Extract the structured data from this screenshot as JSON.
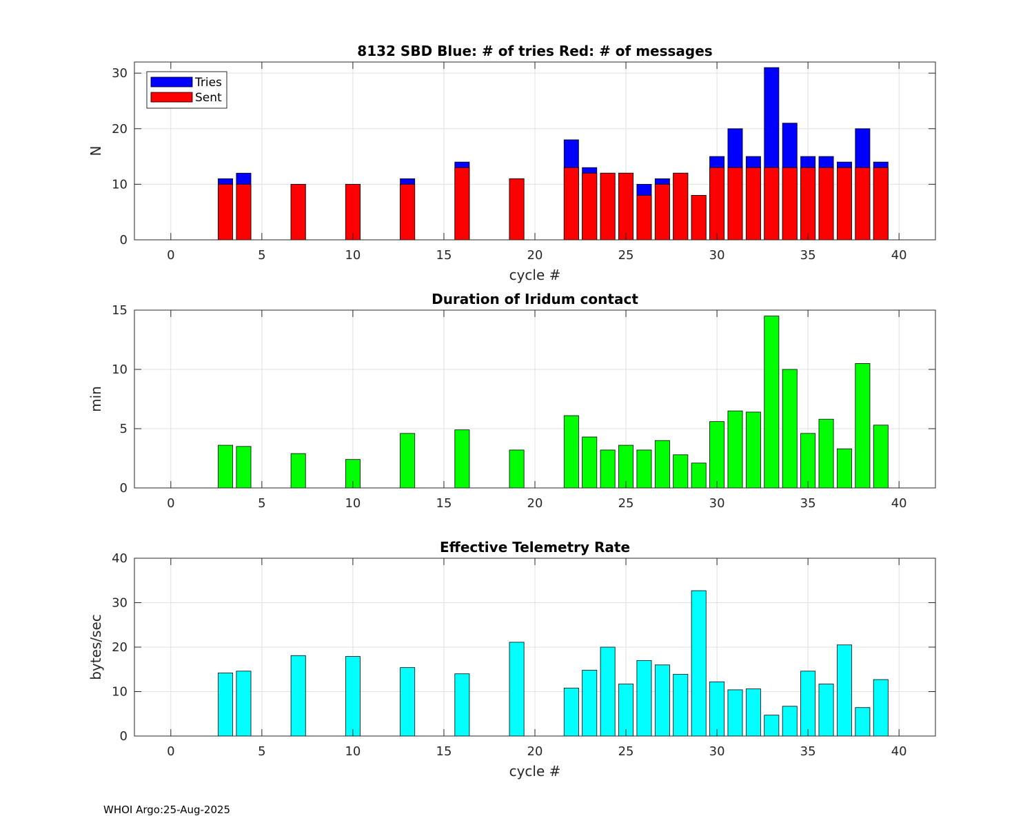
{
  "footer": "WHOI Argo:25-Aug-2025",
  "colors": {
    "tries": "#0000ff",
    "sent": "#ff0000",
    "duration": "#00ff00",
    "rate": "#00ffff"
  },
  "chart_data": [
    {
      "type": "bar",
      "title": "8132 SBD  Blue: # of tries   Red: # of messages",
      "xlabel": "cycle #",
      "ylabel": "N",
      "xlim": [
        -2,
        42
      ],
      "ylim": [
        0,
        32
      ],
      "xticks": [
        0,
        5,
        10,
        15,
        20,
        25,
        30,
        35,
        40
      ],
      "yticks": [
        0,
        10,
        20,
        30
      ],
      "grid": true,
      "legend_position": "top-left",
      "legend": [
        "Tries",
        "Sent"
      ],
      "x": [
        3,
        4,
        7,
        10,
        13,
        16,
        19,
        22,
        23,
        24,
        25,
        26,
        27,
        28,
        29,
        30,
        31,
        32,
        33,
        34,
        35,
        36,
        37,
        38,
        39
      ],
      "series": [
        {
          "name": "Tries",
          "values": [
            11,
            12,
            10,
            10,
            11,
            14,
            11,
            18,
            13,
            12,
            12,
            10,
            11,
            12,
            8,
            15,
            20,
            15,
            31,
            21,
            15,
            15,
            14,
            20,
            14
          ]
        },
        {
          "name": "Sent",
          "values": [
            10,
            10,
            10,
            10,
            10,
            13,
            11,
            13,
            12,
            12,
            12,
            8,
            10,
            12,
            8,
            13,
            13,
            13,
            13,
            13,
            13,
            13,
            13,
            13,
            13
          ]
        }
      ]
    },
    {
      "type": "bar",
      "title": "Duration of Iridum contact",
      "xlabel": "",
      "ylabel": "min",
      "xlim": [
        -2,
        42
      ],
      "ylim": [
        0,
        15
      ],
      "xticks": [
        0,
        5,
        10,
        15,
        20,
        25,
        30,
        35,
        40
      ],
      "yticks": [
        0,
        5,
        10,
        15
      ],
      "grid": true,
      "x": [
        3,
        4,
        7,
        10,
        13,
        16,
        19,
        22,
        23,
        24,
        25,
        26,
        27,
        28,
        29,
        30,
        31,
        32,
        33,
        34,
        35,
        36,
        37,
        38,
        39
      ],
      "series": [
        {
          "name": "Duration",
          "values": [
            3.6,
            3.5,
            2.9,
            2.4,
            4.6,
            4.9,
            3.2,
            6.1,
            4.3,
            3.2,
            3.6,
            3.2,
            4.0,
            2.8,
            2.1,
            5.6,
            6.5,
            6.4,
            14.5,
            10.0,
            4.6,
            5.8,
            3.3,
            10.5,
            5.3
          ]
        }
      ]
    },
    {
      "type": "bar",
      "title": "Effective Telemetry Rate",
      "xlabel": "cycle #",
      "ylabel": "bytes/sec",
      "xlim": [
        -2,
        42
      ],
      "ylim": [
        0,
        40
      ],
      "xticks": [
        0,
        5,
        10,
        15,
        20,
        25,
        30,
        35,
        40
      ],
      "yticks": [
        0,
        10,
        20,
        30,
        40
      ],
      "grid": true,
      "x": [
        3,
        4,
        7,
        10,
        13,
        16,
        19,
        22,
        23,
        24,
        25,
        26,
        27,
        28,
        29,
        30,
        31,
        32,
        33,
        34,
        35,
        36,
        37,
        38,
        39
      ],
      "series": [
        {
          "name": "Rate",
          "values": [
            14.2,
            14.6,
            18.1,
            17.9,
            15.4,
            14.0,
            21.1,
            10.8,
            14.8,
            20.0,
            11.7,
            17.0,
            16.0,
            13.9,
            32.7,
            12.2,
            10.4,
            10.6,
            4.7,
            6.7,
            14.6,
            11.7,
            20.5,
            6.4,
            12.7
          ]
        }
      ]
    }
  ]
}
